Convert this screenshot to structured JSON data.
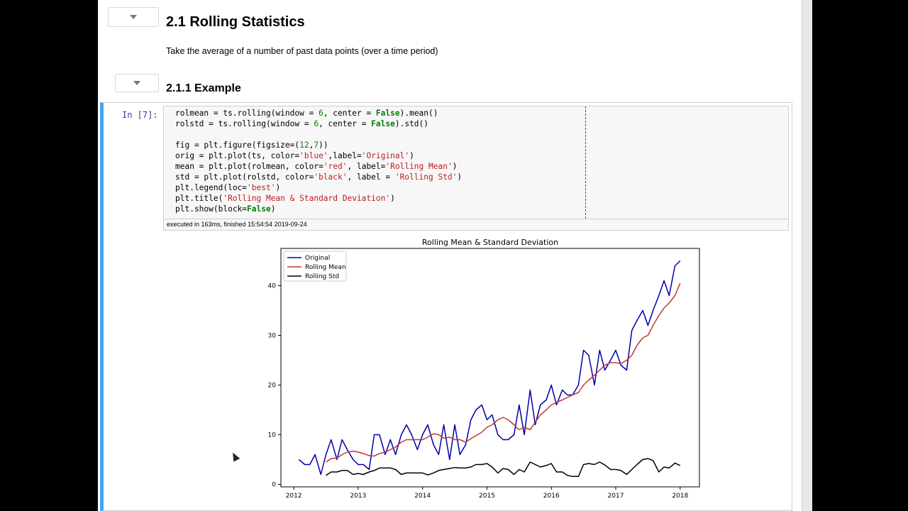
{
  "notebook": {
    "section_title": "2.1  Rolling Statistics",
    "section_description": "Take the average of a number of past data points (over a time period)",
    "subsection_title": "2.1.1  Example",
    "cell_prompt": "In [7]:",
    "execution_info": "executed in 163ms, finished 15:54:54 2019-09-24"
  },
  "code_lines": [
    [
      [
        "rolmean = ts.rolling(window = ",
        ""
      ],
      [
        "6",
        "num"
      ],
      [
        ", center = ",
        ""
      ],
      [
        "False",
        "kw"
      ],
      [
        ").mean()",
        ""
      ]
    ],
    [
      [
        "rolstd = ts.rolling(window = ",
        ""
      ],
      [
        "6",
        "num"
      ],
      [
        ", center = ",
        ""
      ],
      [
        "False",
        "kw"
      ],
      [
        ").std()",
        ""
      ]
    ],
    [],
    [
      [
        "fig = plt.figure(figsize=(",
        ""
      ],
      [
        "12",
        "num"
      ],
      [
        ",",
        ""
      ],
      [
        "7",
        "num"
      ],
      [
        "))",
        ""
      ]
    ],
    [
      [
        "orig = plt.plot(ts, color=",
        ""
      ],
      [
        "'blue'",
        "str"
      ],
      [
        ",label=",
        ""
      ],
      [
        "'Original'",
        "str"
      ],
      [
        ")",
        ""
      ]
    ],
    [
      [
        "mean = plt.plot(rolmean, color=",
        ""
      ],
      [
        "'red'",
        "str"
      ],
      [
        ", label=",
        ""
      ],
      [
        "'Rolling Mean'",
        "str"
      ],
      [
        ")",
        ""
      ]
    ],
    [
      [
        "std = plt.plot(rolstd, color=",
        ""
      ],
      [
        "'black'",
        "str"
      ],
      [
        ", label = ",
        ""
      ],
      [
        "'Rolling Std'",
        "str"
      ],
      [
        ")",
        ""
      ]
    ],
    [
      [
        "plt.legend(loc=",
        ""
      ],
      [
        "'best'",
        "str"
      ],
      [
        ")",
        ""
      ]
    ],
    [
      [
        "plt.title(",
        ""
      ],
      [
        "'Rolling Mean & Standard Deviation'",
        "str"
      ],
      [
        ")",
        ""
      ]
    ],
    [
      [
        "plt.show(block=",
        ""
      ],
      [
        "False",
        "kw"
      ],
      [
        ")",
        ""
      ]
    ]
  ],
  "colors": {
    "original": "#0000aa",
    "rolling_mean": "#c0392b",
    "rolling_std": "#000000",
    "cell_accent": "#42A5F5"
  },
  "chart_data": {
    "type": "line",
    "title": "Rolling Mean & Standard Deviation",
    "xlabel": "",
    "ylabel": "",
    "xlim": [
      2011.8,
      2018.3
    ],
    "ylim": [
      -0.5,
      47.5
    ],
    "x_ticks": [
      2012,
      2013,
      2014,
      2015,
      2016,
      2017,
      2018
    ],
    "y_ticks": [
      0,
      10,
      20,
      30,
      40
    ],
    "legend_position": "top-left",
    "grid": false,
    "series": [
      {
        "name": "Original",
        "color": "#0000aa",
        "x": [
          2012.08,
          2012.17,
          2012.25,
          2012.33,
          2012.42,
          2012.5,
          2012.58,
          2012.67,
          2012.75,
          2012.83,
          2012.92,
          2013.0,
          2013.08,
          2013.17,
          2013.25,
          2013.33,
          2013.42,
          2013.5,
          2013.58,
          2013.67,
          2013.75,
          2013.83,
          2013.92,
          2014.0,
          2014.08,
          2014.17,
          2014.25,
          2014.33,
          2014.42,
          2014.5,
          2014.58,
          2014.67,
          2014.75,
          2014.83,
          2014.92,
          2015.0,
          2015.08,
          2015.17,
          2015.25,
          2015.33,
          2015.42,
          2015.5,
          2015.58,
          2015.67,
          2015.75,
          2015.83,
          2015.92,
          2016.0,
          2016.08,
          2016.17,
          2016.25,
          2016.33,
          2016.42,
          2016.5,
          2016.58,
          2016.67,
          2016.75,
          2016.83,
          2016.92,
          2017.0,
          2017.08,
          2017.17,
          2017.25,
          2017.33,
          2017.42,
          2017.5,
          2017.58,
          2017.67,
          2017.75,
          2017.83,
          2017.92,
          2018.0
        ],
        "values": [
          5,
          4,
          4,
          6,
          2,
          6,
          9,
          5,
          9,
          7,
          5,
          4,
          4,
          3,
          10,
          10,
          6,
          9,
          6,
          10,
          12,
          10,
          7,
          10,
          12,
          8,
          6,
          12,
          5,
          12,
          6,
          8,
          13,
          15,
          16,
          13,
          14,
          10,
          9,
          9,
          10,
          16,
          10,
          19,
          12,
          16,
          17,
          20,
          16,
          19,
          18,
          18,
          20,
          27,
          26,
          20,
          27,
          23,
          25,
          27,
          24,
          23,
          31,
          33,
          35,
          32,
          35,
          38,
          41,
          38,
          44,
          45
        ]
      },
      {
        "name": "Rolling Mean",
        "color": "#c0392b",
        "x": [
          2012.5,
          2012.58,
          2012.67,
          2012.75,
          2012.83,
          2012.92,
          2013.0,
          2013.08,
          2013.17,
          2013.25,
          2013.33,
          2013.42,
          2013.5,
          2013.58,
          2013.67,
          2013.75,
          2013.83,
          2013.92,
          2014.0,
          2014.08,
          2014.17,
          2014.25,
          2014.33,
          2014.42,
          2014.5,
          2014.58,
          2014.67,
          2014.75,
          2014.83,
          2014.92,
          2015.0,
          2015.08,
          2015.17,
          2015.25,
          2015.33,
          2015.42,
          2015.5,
          2015.58,
          2015.67,
          2015.75,
          2015.83,
          2015.92,
          2016.0,
          2016.08,
          2016.17,
          2016.25,
          2016.33,
          2016.42,
          2016.5,
          2016.58,
          2016.67,
          2016.75,
          2016.83,
          2016.92,
          2017.0,
          2017.08,
          2017.17,
          2017.25,
          2017.33,
          2017.42,
          2017.5,
          2017.58,
          2017.67,
          2017.75,
          2017.83,
          2017.92,
          2018.0
        ],
        "values": [
          4.5,
          5.2,
          5.3,
          6.0,
          6.5,
          6.7,
          6.5,
          6.2,
          5.8,
          5.7,
          6.2,
          6.5,
          7.0,
          7.5,
          8.5,
          9.0,
          9.0,
          9.0,
          9.0,
          9.5,
          10.2,
          10.0,
          9.3,
          9.5,
          9.0,
          9.0,
          8.5,
          9.2,
          9.8,
          10.5,
          11.5,
          12.0,
          13.0,
          13.5,
          13.0,
          12.0,
          11.0,
          11.5,
          11.0,
          12.5,
          14.0,
          15.0,
          16.0,
          16.5,
          17.0,
          17.5,
          18.0,
          18.5,
          20.0,
          21.0,
          22.0,
          23.0,
          24.0,
          24.5,
          24.5,
          24.3,
          25.0,
          26.0,
          28.0,
          29.5,
          30.0,
          32.0,
          34.0,
          35.5,
          36.5,
          38.0,
          40.5
        ]
      },
      {
        "name": "Rolling Std",
        "color": "#000000",
        "x": [
          2012.5,
          2012.58,
          2012.67,
          2012.75,
          2012.83,
          2012.92,
          2013.0,
          2013.08,
          2013.17,
          2013.25,
          2013.33,
          2013.42,
          2013.5,
          2013.58,
          2013.67,
          2013.75,
          2013.83,
          2013.92,
          2014.0,
          2014.08,
          2014.17,
          2014.25,
          2014.33,
          2014.42,
          2014.5,
          2014.58,
          2014.67,
          2014.75,
          2014.83,
          2014.92,
          2015.0,
          2015.08,
          2015.17,
          2015.25,
          2015.33,
          2015.42,
          2015.5,
          2015.58,
          2015.67,
          2015.75,
          2015.83,
          2015.92,
          2016.0,
          2016.08,
          2016.17,
          2016.25,
          2016.33,
          2016.42,
          2016.5,
          2016.58,
          2016.67,
          2016.75,
          2016.83,
          2016.92,
          2017.0,
          2017.08,
          2017.17,
          2017.25,
          2017.33,
          2017.42,
          2017.5,
          2017.58,
          2017.67,
          2017.75,
          2017.83,
          2017.92,
          2018.0
        ],
        "values": [
          1.8,
          2.5,
          2.5,
          2.8,
          2.8,
          2.0,
          2.2,
          2.0,
          2.5,
          2.8,
          3.3,
          3.3,
          3.3,
          3.0,
          2.0,
          2.3,
          2.3,
          2.3,
          2.3,
          1.9,
          2.3,
          2.8,
          3.0,
          3.2,
          3.4,
          3.3,
          3.3,
          3.5,
          4.0,
          4.0,
          4.2,
          3.5,
          2.3,
          3.2,
          3.0,
          2.0,
          3.0,
          2.5,
          4.5,
          4.0,
          3.5,
          3.8,
          4.2,
          2.5,
          2.5,
          1.8,
          1.6,
          1.6,
          4.0,
          4.2,
          4.0,
          4.5,
          3.9,
          3.0,
          3.0,
          2.8,
          2.0,
          3.0,
          4.0,
          5.0,
          5.2,
          4.8,
          2.5,
          3.5,
          3.3,
          4.3,
          3.8
        ]
      }
    ]
  }
}
